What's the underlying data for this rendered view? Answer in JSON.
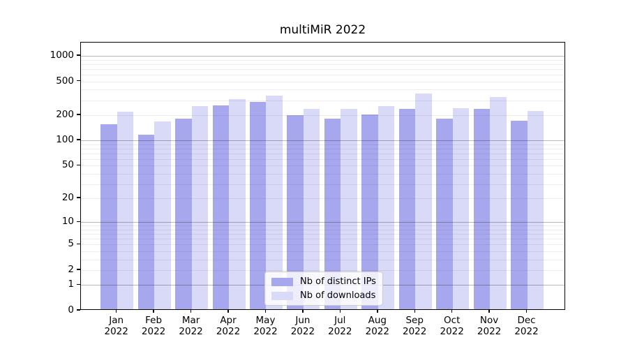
{
  "title": "multiMiR 2022",
  "chart_data": {
    "type": "bar",
    "title": "multiMiR 2022",
    "scale": "log1p",
    "ylim": [
      0,
      1433
    ],
    "yticks": [
      0,
      1,
      2,
      5,
      10,
      20,
      50,
      100,
      200,
      500,
      1000
    ],
    "grid": "on",
    "grid_major": [
      1,
      10,
      100,
      1000
    ],
    "grid_minor_bases": [
      1,
      10,
      100
    ],
    "grid_minor_steps": [
      2,
      3,
      4,
      5,
      6,
      7,
      8,
      9
    ],
    "categories": [
      "Jan",
      "Feb",
      "Mar",
      "Apr",
      "May",
      "Jun",
      "Jul",
      "Aug",
      "Sep",
      "Oct",
      "Nov",
      "Dec"
    ],
    "year_label": "2022",
    "legend_position": "inside-bottom-center",
    "series": [
      {
        "name": "Nb of distinct IPs",
        "color": "#a7a7ee",
        "values": [
          150,
          113,
          173,
          250,
          278,
          193,
          173,
          197,
          227,
          173,
          230,
          165
        ]
      },
      {
        "name": "Nb of downloads",
        "color": "#d9d9f8",
        "values": [
          213,
          163,
          245,
          300,
          327,
          227,
          229,
          248,
          349,
          233,
          315,
          217
        ]
      }
    ]
  }
}
